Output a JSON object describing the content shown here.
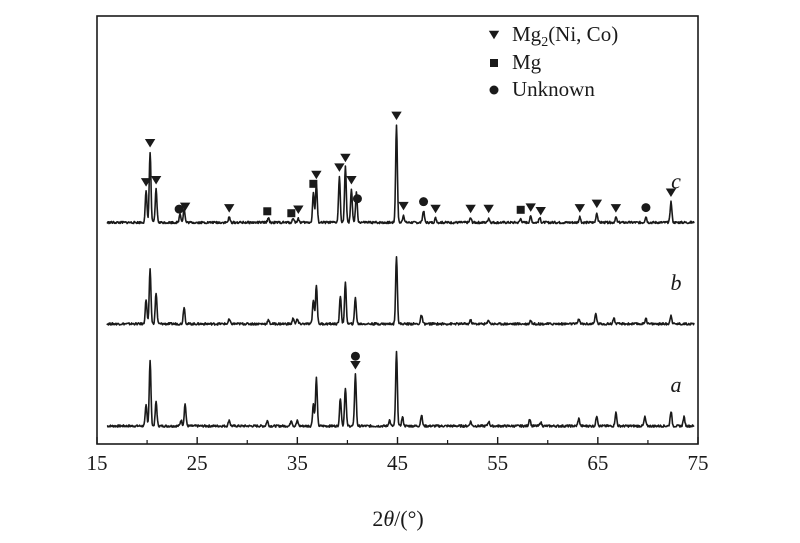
{
  "chart_data": {
    "type": "line",
    "xlabel": {
      "prefix": "2",
      "symbol": "θ",
      "suffix": "/(°)"
    },
    "xlim": [
      15,
      75
    ],
    "x_ticks": [
      "15",
      "25",
      "35",
      "45",
      "55",
      "65",
      "75"
    ],
    "y_ticks_shown": false,
    "grid": false,
    "legend_position": "top-right",
    "legend": [
      {
        "marker": "triangle-down",
        "parts": [
          "Mg",
          "2",
          "(Ni, Co)"
        ]
      },
      {
        "marker": "square",
        "parts": [
          "Mg"
        ]
      },
      {
        "marker": "circle",
        "parts": [
          "Unknown"
        ]
      }
    ],
    "series": [
      {
        "name": "a",
        "baseline": 0.0,
        "peaks": [
          [
            19.9,
            0.28
          ],
          [
            20.3,
            0.88
          ],
          [
            20.9,
            0.33
          ],
          [
            23.4,
            0.08
          ],
          [
            23.8,
            0.3
          ],
          [
            28.2,
            0.08
          ],
          [
            32.0,
            0.07
          ],
          [
            34.4,
            0.08
          ],
          [
            35.0,
            0.07
          ],
          [
            36.6,
            0.3
          ],
          [
            36.9,
            0.65
          ],
          [
            39.3,
            0.38
          ],
          [
            39.8,
            0.52
          ],
          [
            40.8,
            0.7
          ],
          [
            44.2,
            0.08
          ],
          [
            44.9,
            1.0
          ],
          [
            45.5,
            0.12
          ],
          [
            47.4,
            0.15
          ],
          [
            52.3,
            0.06
          ],
          [
            54.1,
            0.06
          ],
          [
            58.2,
            0.1
          ],
          [
            59.3,
            0.05
          ],
          [
            63.1,
            0.1
          ],
          [
            64.9,
            0.14
          ],
          [
            66.8,
            0.18
          ],
          [
            69.7,
            0.12
          ],
          [
            72.3,
            0.2
          ],
          [
            73.6,
            0.12
          ]
        ]
      },
      {
        "name": "b",
        "baseline": 1.38,
        "peaks": [
          [
            19.9,
            0.33
          ],
          [
            20.3,
            0.73
          ],
          [
            20.9,
            0.42
          ],
          [
            23.7,
            0.23
          ],
          [
            28.2,
            0.06
          ],
          [
            32.1,
            0.05
          ],
          [
            34.6,
            0.08
          ],
          [
            35.0,
            0.06
          ],
          [
            36.6,
            0.33
          ],
          [
            36.9,
            0.53
          ],
          [
            39.3,
            0.38
          ],
          [
            39.8,
            0.55
          ],
          [
            40.8,
            0.36
          ],
          [
            44.9,
            0.92
          ],
          [
            47.4,
            0.12
          ],
          [
            52.3,
            0.05
          ],
          [
            54.1,
            0.05
          ],
          [
            58.3,
            0.05
          ],
          [
            63.1,
            0.07
          ],
          [
            64.8,
            0.14
          ],
          [
            66.6,
            0.08
          ],
          [
            69.8,
            0.08
          ],
          [
            72.3,
            0.12
          ]
        ]
      },
      {
        "name": "c",
        "baseline": 2.75,
        "peaks": [
          [
            19.9,
            0.42
          ],
          [
            20.3,
            0.95
          ],
          [
            20.9,
            0.45
          ],
          [
            23.3,
            0.12
          ],
          [
            23.7,
            0.18
          ],
          [
            28.2,
            0.07
          ],
          [
            32.1,
            0.06
          ],
          [
            34.6,
            0.06
          ],
          [
            35.1,
            0.05
          ],
          [
            36.6,
            0.4
          ],
          [
            36.9,
            0.52
          ],
          [
            39.2,
            0.62
          ],
          [
            39.8,
            0.75
          ],
          [
            40.4,
            0.45
          ],
          [
            40.9,
            0.4
          ],
          [
            44.9,
            1.32
          ],
          [
            45.6,
            0.1
          ],
          [
            47.6,
            0.16
          ],
          [
            48.8,
            0.06
          ],
          [
            52.3,
            0.06
          ],
          [
            54.1,
            0.06
          ],
          [
            57.3,
            0.05
          ],
          [
            58.3,
            0.08
          ],
          [
            59.2,
            0.06
          ],
          [
            63.2,
            0.07
          ],
          [
            64.9,
            0.13
          ],
          [
            66.8,
            0.07
          ],
          [
            69.8,
            0.08
          ],
          [
            72.3,
            0.28
          ]
        ]
      }
    ],
    "phase_markers": [
      {
        "series": "a",
        "x": 40.8,
        "markers": [
          "circle",
          "triangle-down"
        ]
      },
      {
        "series": "c",
        "x": 19.9,
        "markers": [
          "triangle-down"
        ]
      },
      {
        "series": "c",
        "x": 20.3,
        "markers": [
          "triangle-down"
        ]
      },
      {
        "series": "c",
        "x": 20.9,
        "markers": [
          "triangle-down"
        ]
      },
      {
        "series": "c",
        "x": 23.2,
        "markers": [
          "circle"
        ]
      },
      {
        "series": "c",
        "x": 23.8,
        "markers": [
          "triangle-down"
        ]
      },
      {
        "series": "c",
        "x": 28.2,
        "markers": [
          "triangle-down"
        ]
      },
      {
        "series": "c",
        "x": 32.0,
        "markers": [
          "square"
        ]
      },
      {
        "series": "c",
        "x": 34.4,
        "markers": [
          "square"
        ]
      },
      {
        "series": "c",
        "x": 35.1,
        "markers": [
          "triangle-down"
        ]
      },
      {
        "series": "c",
        "x": 36.6,
        "markers": [
          "square"
        ]
      },
      {
        "series": "c",
        "x": 36.9,
        "markers": [
          "triangle-down"
        ]
      },
      {
        "series": "c",
        "x": 39.2,
        "markers": [
          "triangle-down"
        ]
      },
      {
        "series": "c",
        "x": 39.8,
        "markers": [
          "triangle-down"
        ]
      },
      {
        "series": "c",
        "x": 40.4,
        "markers": [
          "triangle-down"
        ]
      },
      {
        "series": "c",
        "x": 41.0,
        "markers": [
          "circle"
        ]
      },
      {
        "series": "c",
        "x": 44.9,
        "markers": [
          "triangle-down"
        ]
      },
      {
        "series": "c",
        "x": 45.6,
        "markers": [
          "triangle-down"
        ]
      },
      {
        "series": "c",
        "x": 47.6,
        "markers": [
          "circle"
        ]
      },
      {
        "series": "c",
        "x": 48.8,
        "markers": [
          "triangle-down"
        ]
      },
      {
        "series": "c",
        "x": 52.3,
        "markers": [
          "triangle-down"
        ]
      },
      {
        "series": "c",
        "x": 54.1,
        "markers": [
          "triangle-down"
        ]
      },
      {
        "series": "c",
        "x": 57.3,
        "markers": [
          "square"
        ]
      },
      {
        "series": "c",
        "x": 58.3,
        "markers": [
          "triangle-down"
        ]
      },
      {
        "series": "c",
        "x": 59.3,
        "markers": [
          "triangle-down"
        ]
      },
      {
        "series": "c",
        "x": 63.2,
        "markers": [
          "triangle-down"
        ]
      },
      {
        "series": "c",
        "x": 64.9,
        "markers": [
          "triangle-down"
        ]
      },
      {
        "series": "c",
        "x": 66.8,
        "markers": [
          "triangle-down"
        ]
      },
      {
        "series": "c",
        "x": 69.8,
        "markers": [
          "circle"
        ]
      },
      {
        "series": "c",
        "x": 72.3,
        "markers": [
          "triangle-down"
        ]
      }
    ],
    "colors": {
      "line": "#1a1a1a",
      "frame": "#1a1a1a"
    }
  }
}
